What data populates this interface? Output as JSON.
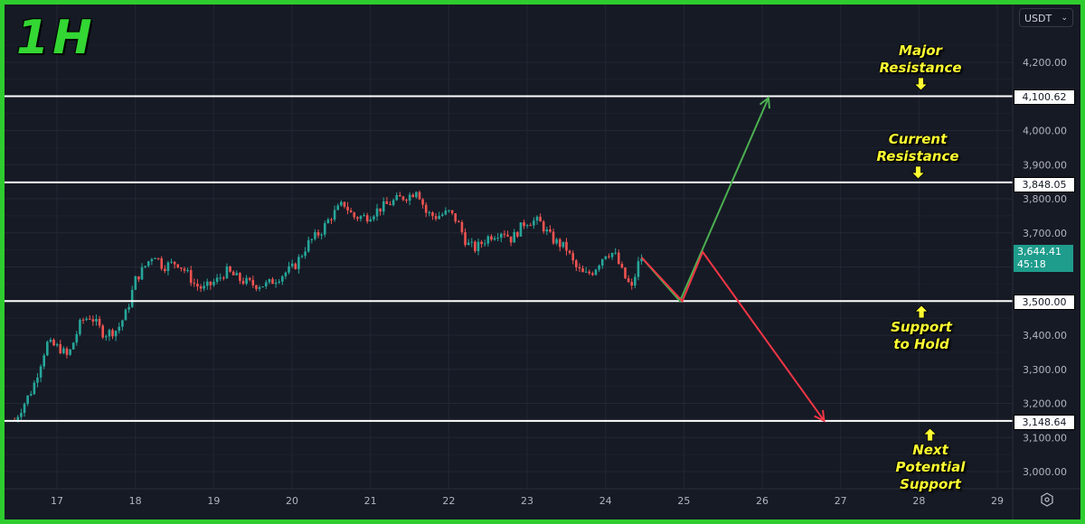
{
  "title": "1H",
  "currency_selector": {
    "value": "USDT",
    "icon": "chevron-down-icon"
  },
  "colors": {
    "up": "#26a69a",
    "down": "#ef5350",
    "bullish_projection": "#4caf50",
    "bearish_projection": "#f23645",
    "level_line": "#ffffff",
    "annotation": "#ffff33",
    "border": "#2fcc2f",
    "background": "#161a25"
  },
  "current_price": {
    "value": "3,644.41",
    "countdown": "45:18"
  },
  "levels": [
    {
      "price": 4100.62,
      "label": "4,100.62"
    },
    {
      "price": 3848.05,
      "label": "3,848.05"
    },
    {
      "price": 3500.0,
      "label": "3,500.00"
    },
    {
      "price": 3148.64,
      "label": "3,148.64"
    }
  ],
  "annotations": [
    {
      "lines": [
        "Major",
        "Resistance"
      ],
      "arrow": "down"
    },
    {
      "lines": [
        "Current",
        "Resistance"
      ],
      "arrow": "down"
    },
    {
      "lines": [
        "Support",
        "to Hold"
      ],
      "arrow": "up"
    },
    {
      "lines": [
        "Next",
        "Potential",
        "Support"
      ],
      "arrow": "up"
    }
  ],
  "settings_icon": "gear-icon",
  "chart_data": {
    "type": "candlestick",
    "timeframe": "1H",
    "x_unit": "day of month",
    "ylim": [
      2950,
      4270
    ],
    "xlim": [
      16.4,
      29.3
    ],
    "y_ticks": [
      3000,
      3100,
      3200,
      3300,
      3400,
      3500,
      3600,
      3700,
      3800,
      3900,
      4000,
      4100,
      4200
    ],
    "y_tick_labels": [
      "3,000.00",
      "3,100.00",
      "3,200.00",
      "3,300.00",
      "3,400.00",
      "",
      "",
      "3,700.00",
      "3,800.00",
      "3,900.00",
      "4,000.00",
      "",
      "4,200.00"
    ],
    "x_ticks": [
      17,
      18,
      19,
      20,
      21,
      22,
      23,
      24,
      25,
      26,
      27,
      28,
      29
    ],
    "x_tick_labels": [
      "17",
      "18",
      "19",
      "20",
      "21",
      "22",
      "23",
      "24",
      "25",
      "26",
      "27",
      "28",
      "29"
    ],
    "grid": true,
    "price_path": [
      [
        16.46,
        3151
      ],
      [
        16.69,
        3244
      ],
      [
        16.87,
        3376
      ],
      [
        17.03,
        3363
      ],
      [
        17.14,
        3336
      ],
      [
        17.31,
        3442
      ],
      [
        17.43,
        3456
      ],
      [
        17.6,
        3403
      ],
      [
        17.77,
        3416
      ],
      [
        17.89,
        3469
      ],
      [
        18.0,
        3562
      ],
      [
        18.12,
        3601
      ],
      [
        18.24,
        3641
      ],
      [
        18.35,
        3601
      ],
      [
        18.53,
        3614
      ],
      [
        18.64,
        3588
      ],
      [
        18.76,
        3548
      ],
      [
        18.87,
        3535
      ],
      [
        19.05,
        3562
      ],
      [
        19.16,
        3588
      ],
      [
        19.34,
        3562
      ],
      [
        19.51,
        3548
      ],
      [
        19.68,
        3548
      ],
      [
        19.86,
        3575
      ],
      [
        20.03,
        3601
      ],
      [
        20.2,
        3668
      ],
      [
        20.38,
        3707
      ],
      [
        20.49,
        3747
      ],
      [
        20.66,
        3787
      ],
      [
        20.78,
        3747
      ],
      [
        20.95,
        3747
      ],
      [
        21.13,
        3773
      ],
      [
        21.36,
        3800
      ],
      [
        21.53,
        3813
      ],
      [
        21.59,
        3832
      ],
      [
        21.71,
        3760
      ],
      [
        21.82,
        3747
      ],
      [
        22.0,
        3760
      ],
      [
        22.11,
        3734
      ],
      [
        22.23,
        3668
      ],
      [
        22.34,
        3654
      ],
      [
        22.51,
        3689
      ],
      [
        22.69,
        3707
      ],
      [
        22.8,
        3681
      ],
      [
        22.98,
        3734
      ],
      [
        23.15,
        3734
      ],
      [
        23.32,
        3681
      ],
      [
        23.5,
        3654
      ],
      [
        23.61,
        3601
      ],
      [
        23.73,
        3575
      ],
      [
        23.84,
        3588
      ],
      [
        24.0,
        3641
      ],
      [
        24.11,
        3641
      ],
      [
        24.23,
        3575
      ],
      [
        24.34,
        3535
      ],
      [
        24.4,
        3601
      ],
      [
        24.46,
        3628
      ]
    ],
    "projections": [
      {
        "direction": "bullish",
        "points": [
          [
            24.46,
            3628
          ],
          [
            24.95,
            3500
          ],
          [
            26.08,
            4096
          ]
        ]
      },
      {
        "direction": "bearish",
        "points": [
          [
            24.46,
            3628
          ],
          [
            24.98,
            3500
          ],
          [
            25.24,
            3644
          ],
          [
            26.79,
            3149
          ]
        ]
      }
    ]
  }
}
